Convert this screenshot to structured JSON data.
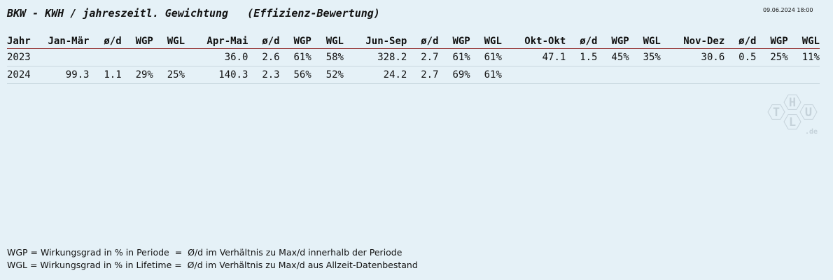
{
  "title": "BKW - KWH / jahreszeitl. Gewichtung   (Effizienz-Bewertung)",
  "date": "09.06.2024 18:00",
  "chart_data": {
    "type": "table",
    "columns": [
      "Jahr",
      "Jan-Mär",
      "ø/d",
      "WGP",
      "WGL",
      "Apr-Mai",
      "ø/d",
      "WGP",
      "WGL",
      "Jun-Sep",
      "ø/d",
      "WGP",
      "WGL",
      "Okt-Okt",
      "ø/d",
      "WGP",
      "WGL",
      "Nov-Dez",
      "ø/d",
      "WGP",
      "WGL"
    ],
    "rows": [
      [
        "2023",
        "",
        "",
        "",
        "",
        "36.0",
        "2.6",
        "61%",
        "58%",
        "328.2",
        "2.7",
        "61%",
        "61%",
        "47.1",
        "1.5",
        "45%",
        "35%",
        "30.6",
        "0.5",
        "25%",
        "11%"
      ],
      [
        "2024",
        "99.3",
        "1.1",
        "29%",
        "25%",
        "140.3",
        "2.3",
        "56%",
        "52%",
        "24.2",
        "2.7",
        "69%",
        "61%",
        "",
        "",
        "",
        "",
        "",
        "",
        "",
        ""
      ]
    ]
  },
  "logo": {
    "letters": [
      "T",
      "H",
      "U",
      "L"
    ],
    "suffix": ".de",
    "color": "#c5d2da"
  },
  "legend": {
    "wgp": "WGP = Wirkungsgrad in % in Periode  =  Ø/d im Verhältnis zu Max/d innerhalb der Periode",
    "wgl": "WGL = Wirkungsgrad in % in Lifetime =  Ø/d im Verhältnis zu Max/d aus Allzeit-Datenbestand"
  }
}
